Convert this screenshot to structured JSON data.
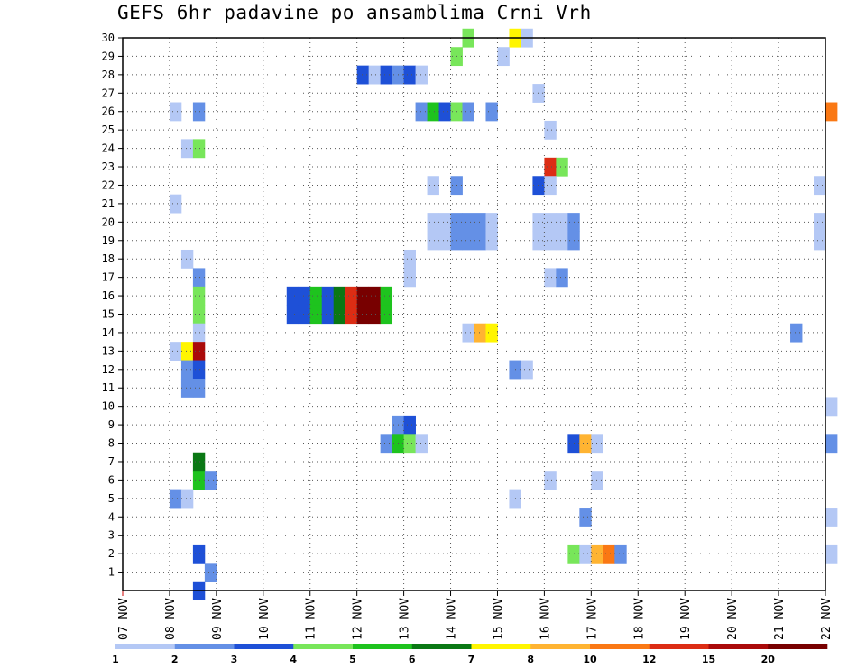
{
  "chart_data": {
    "type": "heatmap",
    "title": "GEFS 6hr padavine po ansamblima Crni Vrh",
    "xlabel": "",
    "ylabel": "",
    "x_ticks": [
      "07 NOV",
      "08 NOV",
      "09 NOV",
      "10 NOV",
      "11 NOV",
      "12 NOV",
      "13 NOV",
      "14 NOV",
      "15 NOV",
      "16 NOV",
      "17 NOV",
      "18 NOV",
      "19 NOV",
      "20 NOV",
      "21 NOV",
      "22 NOV"
    ],
    "y_ticks": [
      1,
      2,
      3,
      4,
      5,
      6,
      7,
      8,
      9,
      10,
      11,
      12,
      13,
      14,
      15,
      16,
      17,
      18,
      19,
      20,
      21,
      22,
      23,
      24,
      25,
      26,
      27,
      28,
      29,
      30
    ],
    "x_range": [
      "07 NOV",
      "22 NOV"
    ],
    "y_range": [
      0,
      30
    ],
    "steps_per_day": 4,
    "grid": true,
    "legend_position": "bottom",
    "legend": {
      "labels": [
        "1",
        "2",
        "3",
        "4",
        "5",
        "6",
        "7",
        "8",
        "10",
        "12",
        "15",
        "20"
      ],
      "colors": [
        "#b4c8f5",
        "#6490e6",
        "#1e50d7",
        "#78e65a",
        "#1ec31e",
        "#0a7814",
        "#fff500",
        "#ffb432",
        "#fa7814",
        "#dc2d14",
        "#aa0a0a",
        "#780000"
      ]
    },
    "cells": [
      {
        "member": 30,
        "step": 29,
        "level": 4
      },
      {
        "member": 30,
        "step": 33,
        "level": 7
      },
      {
        "member": 30,
        "step": 34,
        "level": 1
      },
      {
        "member": 29,
        "step": 28,
        "level": 4
      },
      {
        "member": 29,
        "step": 32,
        "level": 1
      },
      {
        "member": 28,
        "step": 20,
        "level": 3
      },
      {
        "member": 28,
        "step": 21,
        "level": 1
      },
      {
        "member": 28,
        "step": 22,
        "level": 3
      },
      {
        "member": 28,
        "step": 23,
        "level": 2
      },
      {
        "member": 28,
        "step": 24,
        "level": 3
      },
      {
        "member": 28,
        "step": 25,
        "level": 1
      },
      {
        "member": 27,
        "step": 35,
        "level": 1
      },
      {
        "member": 26,
        "step": 4,
        "level": 1
      },
      {
        "member": 26,
        "step": 6,
        "level": 2
      },
      {
        "member": 26,
        "step": 25,
        "level": 2
      },
      {
        "member": 26,
        "step": 26,
        "level": 5
      },
      {
        "member": 26,
        "step": 27,
        "level": 3
      },
      {
        "member": 26,
        "step": 28,
        "level": 4
      },
      {
        "member": 26,
        "step": 29,
        "level": 2
      },
      {
        "member": 26,
        "step": 31,
        "level": 2
      },
      {
        "member": 26,
        "step": 60,
        "level": 9
      },
      {
        "member": 25,
        "step": 36,
        "level": 1
      },
      {
        "member": 24,
        "step": 5,
        "level": 1
      },
      {
        "member": 24,
        "step": 6,
        "level": 4
      },
      {
        "member": 23,
        "step": 36,
        "level": 10
      },
      {
        "member": 23,
        "step": 37,
        "level": 4
      },
      {
        "member": 22,
        "step": 26,
        "level": 1
      },
      {
        "member": 22,
        "step": 28,
        "level": 2
      },
      {
        "member": 22,
        "step": 35,
        "level": 3
      },
      {
        "member": 22,
        "step": 36,
        "level": 1
      },
      {
        "member": 22,
        "step": 59,
        "level": 1
      },
      {
        "member": 21,
        "step": 4,
        "level": 1
      },
      {
        "member": 20,
        "step": 26,
        "level": 1
      },
      {
        "member": 20,
        "step": 27,
        "level": 1
      },
      {
        "member": 20,
        "step": 28,
        "level": 2
      },
      {
        "member": 20,
        "step": 29,
        "level": 2
      },
      {
        "member": 20,
        "step": 30,
        "level": 2
      },
      {
        "member": 20,
        "step": 31,
        "level": 1
      },
      {
        "member": 20,
        "step": 35,
        "level": 1
      },
      {
        "member": 20,
        "step": 36,
        "level": 1
      },
      {
        "member": 20,
        "step": 37,
        "level": 1
      },
      {
        "member": 20,
        "step": 38,
        "level": 2
      },
      {
        "member": 20,
        "step": 59,
        "level": 1
      },
      {
        "member": 19,
        "step": 26,
        "level": 1
      },
      {
        "member": 19,
        "step": 27,
        "level": 1
      },
      {
        "member": 19,
        "step": 28,
        "level": 2
      },
      {
        "member": 19,
        "step": 29,
        "level": 2
      },
      {
        "member": 19,
        "step": 30,
        "level": 2
      },
      {
        "member": 19,
        "step": 31,
        "level": 1
      },
      {
        "member": 19,
        "step": 35,
        "level": 1
      },
      {
        "member": 19,
        "step": 36,
        "level": 1
      },
      {
        "member": 19,
        "step": 37,
        "level": 1
      },
      {
        "member": 19,
        "step": 38,
        "level": 2
      },
      {
        "member": 19,
        "step": 59,
        "level": 1
      },
      {
        "member": 18,
        "step": 5,
        "level": 1
      },
      {
        "member": 18,
        "step": 24,
        "level": 1
      },
      {
        "member": 17,
        "step": 6,
        "level": 2
      },
      {
        "member": 17,
        "step": 24,
        "level": 1
      },
      {
        "member": 17,
        "step": 36,
        "level": 1
      },
      {
        "member": 17,
        "step": 37,
        "level": 2
      },
      {
        "member": 16,
        "step": 6,
        "level": 4
      },
      {
        "member": 16,
        "step": 14,
        "level": 3
      },
      {
        "member": 16,
        "step": 15,
        "level": 3
      },
      {
        "member": 16,
        "step": 16,
        "level": 5
      },
      {
        "member": 16,
        "step": 17,
        "level": 3
      },
      {
        "member": 16,
        "step": 18,
        "level": 6
      },
      {
        "member": 16,
        "step": 19,
        "level": 10
      },
      {
        "member": 16,
        "step": 20,
        "level": 12
      },
      {
        "member": 16,
        "step": 21,
        "level": 12
      },
      {
        "member": 16,
        "step": 22,
        "level": 5
      },
      {
        "member": 15,
        "step": 6,
        "level": 4
      },
      {
        "member": 15,
        "step": 14,
        "level": 3
      },
      {
        "member": 15,
        "step": 15,
        "level": 3
      },
      {
        "member": 15,
        "step": 16,
        "level": 5
      },
      {
        "member": 15,
        "step": 17,
        "level": 3
      },
      {
        "member": 15,
        "step": 18,
        "level": 6
      },
      {
        "member": 15,
        "step": 19,
        "level": 10
      },
      {
        "member": 15,
        "step": 20,
        "level": 12
      },
      {
        "member": 15,
        "step": 21,
        "level": 12
      },
      {
        "member": 15,
        "step": 22,
        "level": 5
      },
      {
        "member": 14,
        "step": 6,
        "level": 1
      },
      {
        "member": 14,
        "step": 29,
        "level": 1
      },
      {
        "member": 14,
        "step": 30,
        "level": 8
      },
      {
        "member": 14,
        "step": 31,
        "level": 7
      },
      {
        "member": 14,
        "step": 57,
        "level": 2
      },
      {
        "member": 13,
        "step": 4,
        "level": 1
      },
      {
        "member": 13,
        "step": 5,
        "level": 7
      },
      {
        "member": 13,
        "step": 6,
        "level": 11
      },
      {
        "member": 12,
        "step": 5,
        "level": 2
      },
      {
        "member": 12,
        "step": 6,
        "level": 3
      },
      {
        "member": 12,
        "step": 33,
        "level": 2
      },
      {
        "member": 12,
        "step": 34,
        "level": 1
      },
      {
        "member": 11,
        "step": 5,
        "level": 2
      },
      {
        "member": 11,
        "step": 6,
        "level": 2
      },
      {
        "member": 10,
        "step": 60,
        "level": 1
      },
      {
        "member": 9,
        "step": 23,
        "level": 2
      },
      {
        "member": 9,
        "step": 24,
        "level": 3
      },
      {
        "member": 8,
        "step": 22,
        "level": 2
      },
      {
        "member": 8,
        "step": 23,
        "level": 5
      },
      {
        "member": 8,
        "step": 24,
        "level": 4
      },
      {
        "member": 8,
        "step": 25,
        "level": 1
      },
      {
        "member": 8,
        "step": 38,
        "level": 3
      },
      {
        "member": 8,
        "step": 39,
        "level": 8
      },
      {
        "member": 8,
        "step": 40,
        "level": 1
      },
      {
        "member": 8,
        "step": 60,
        "level": 2
      },
      {
        "member": 7,
        "step": 6,
        "level": 6
      },
      {
        "member": 6,
        "step": 6,
        "level": 5
      },
      {
        "member": 6,
        "step": 7,
        "level": 2
      },
      {
        "member": 6,
        "step": 36,
        "level": 1
      },
      {
        "member": 6,
        "step": 40,
        "level": 1
      },
      {
        "member": 5,
        "step": 4,
        "level": 2
      },
      {
        "member": 5,
        "step": 5,
        "level": 1
      },
      {
        "member": 5,
        "step": 33,
        "level": 1
      },
      {
        "member": 4,
        "step": 39,
        "level": 2
      },
      {
        "member": 4,
        "step": 60,
        "level": 1
      },
      {
        "member": 2,
        "step": 6,
        "level": 3
      },
      {
        "member": 2,
        "step": 38,
        "level": 4
      },
      {
        "member": 2,
        "step": 39,
        "level": 1
      },
      {
        "member": 2,
        "step": 40,
        "level": 8
      },
      {
        "member": 2,
        "step": 41,
        "level": 9
      },
      {
        "member": 2,
        "step": 42,
        "level": 2
      },
      {
        "member": 2,
        "step": 60,
        "level": 1
      },
      {
        "member": 1,
        "step": 7,
        "level": 2
      },
      {
        "member": 0,
        "step": 6,
        "level": 3
      }
    ]
  }
}
